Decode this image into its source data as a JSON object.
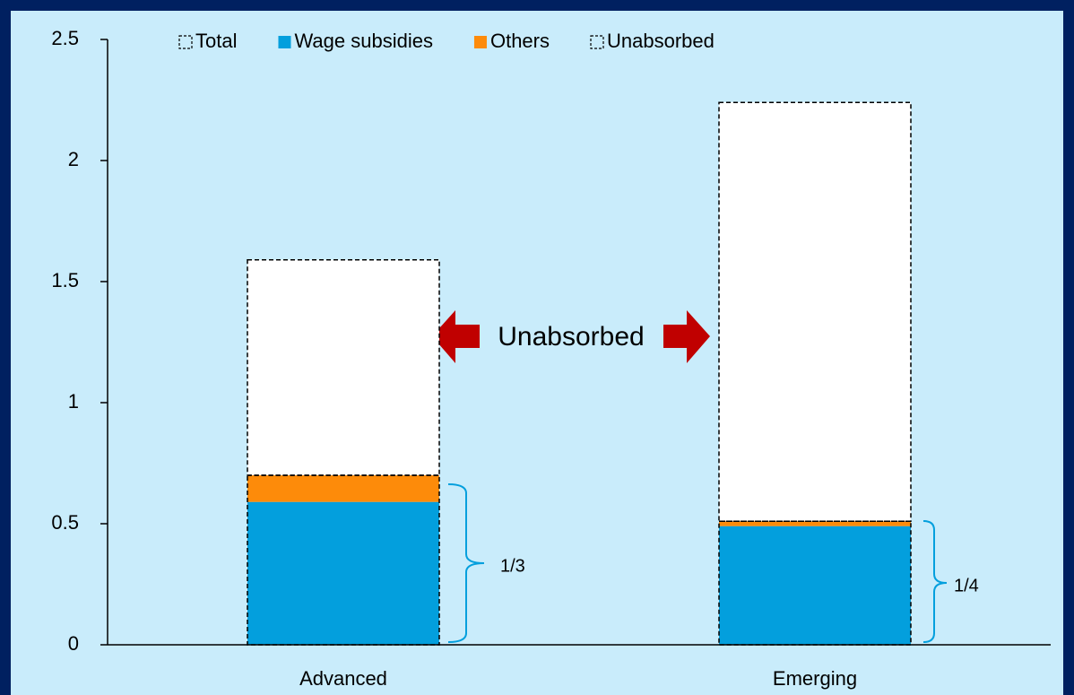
{
  "chart_data": {
    "type": "bar",
    "categories": [
      "Advanced",
      "Emerging"
    ],
    "series": [
      {
        "name": "Total",
        "color": "none",
        "dashed": true,
        "overlay": true,
        "values": [
          0.7,
          0.51
        ]
      },
      {
        "name": "Wage subsidies",
        "color": "#039fdd",
        "values": [
          0.59,
          0.49
        ]
      },
      {
        "name": "Others",
        "color": "#fd8b0a",
        "values": [
          0.11,
          0.02
        ]
      },
      {
        "name": "Unabsorbed",
        "color": "#ffffff",
        "dashed": true,
        "values": [
          0.89,
          1.73
        ]
      }
    ],
    "ylim": [
      0,
      2.5
    ],
    "yticks": [
      0,
      0.5,
      1,
      1.5,
      2,
      2.5
    ],
    "legend": "top",
    "annotations": {
      "arrow_label": "Unabsorbed",
      "shares": [
        "1/3",
        "1/4"
      ]
    }
  }
}
